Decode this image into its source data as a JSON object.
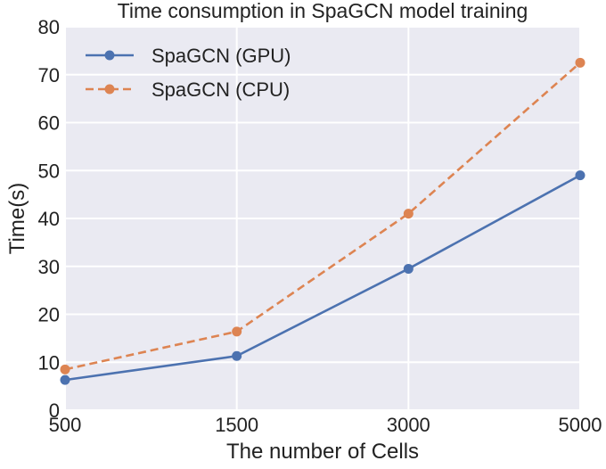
{
  "chart_data": {
    "type": "line",
    "title": "Time consumption in SpaGCN model training",
    "xlabel": "The number of Cells",
    "ylabel": "Time(s)",
    "categories": [
      "500",
      "1500",
      "3000",
      "5000"
    ],
    "ylim": [
      0,
      80
    ],
    "yticks": [
      "0",
      "10",
      "20",
      "30",
      "40",
      "50",
      "60",
      "70",
      "80"
    ],
    "grid": true,
    "legend_position": "top-left",
    "series": [
      {
        "name": "SpaGCN (GPU)",
        "values": [
          6.3,
          11.3,
          29.5,
          49.0
        ],
        "color": "#4c72b0",
        "dash": "solid"
      },
      {
        "name": "SpaGCN (CPU)",
        "values": [
          8.5,
          16.4,
          41.0,
          72.5
        ],
        "color": "#dd8452",
        "dash": "dashed"
      }
    ]
  }
}
